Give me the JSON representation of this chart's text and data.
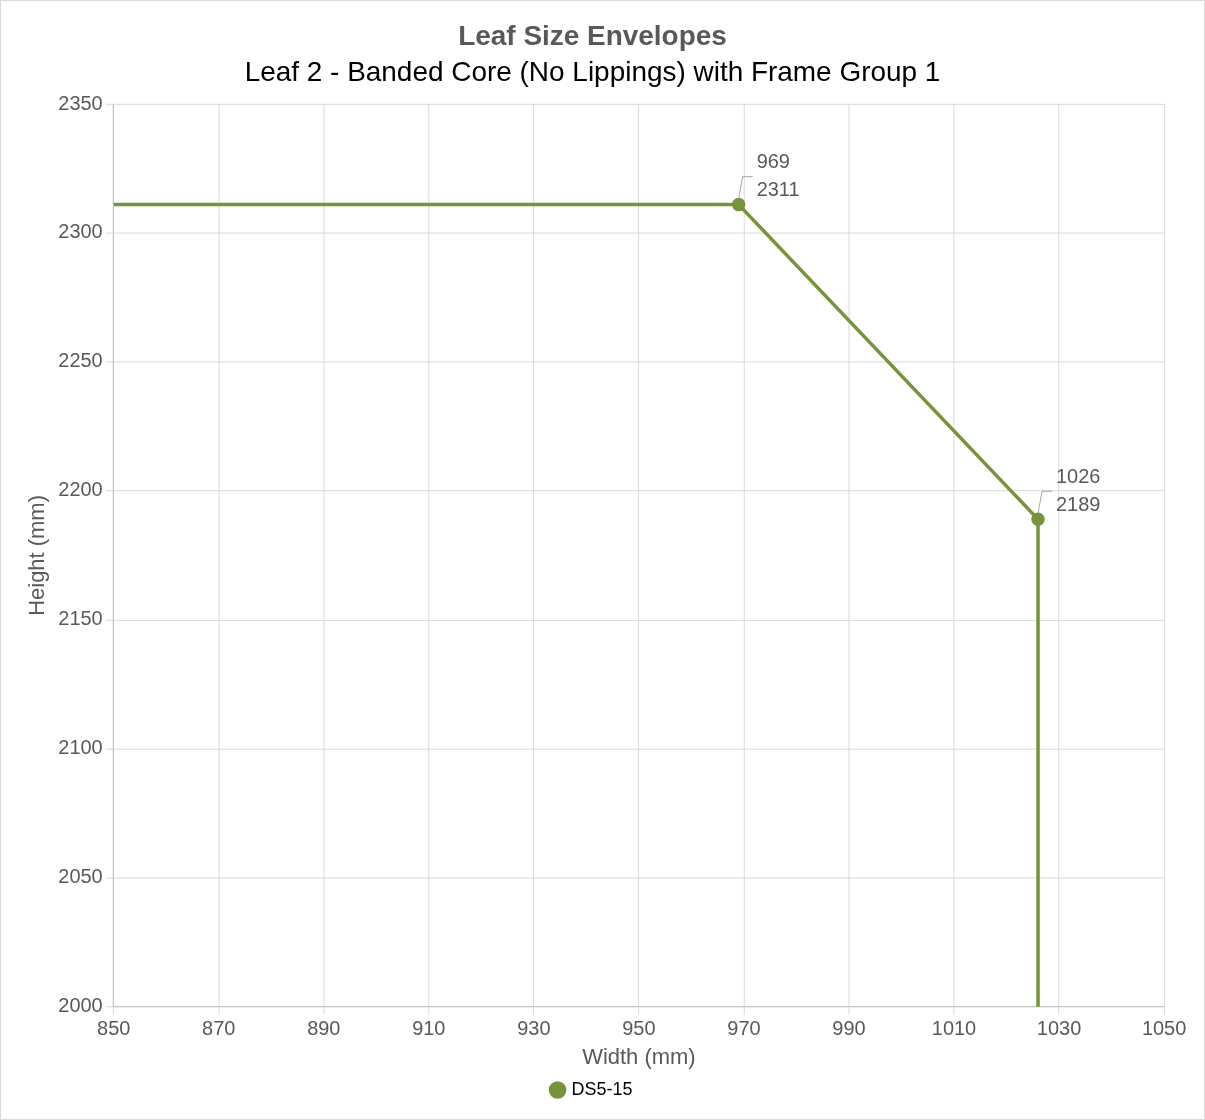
{
  "chart_data": {
    "type": "line",
    "title": "Leaf Size Envelopes",
    "subtitle": "Leaf 2 - Banded Core (No Lippings) with Frame Group 1",
    "xlabel": "Width (mm)",
    "ylabel": "Height (mm)",
    "x": [
      850,
      969,
      1026,
      1026
    ],
    "series": [
      {
        "name": "DS5-15",
        "color": "#77933c",
        "values": [
          2311,
          2311,
          2189,
          2000
        ],
        "value_labels": [
          null,
          "969\n2311",
          "1026\n2189",
          null
        ]
      }
    ],
    "xlim": [
      850,
      1050
    ],
    "xticks": [
      850,
      870,
      890,
      910,
      930,
      950,
      970,
      990,
      1010,
      1030,
      1050
    ],
    "ylim": [
      2000,
      2350
    ],
    "yticks": [
      2000,
      2050,
      2100,
      2150,
      2200,
      2250,
      2300,
      2350
    ],
    "grid": true,
    "legend": "bottom",
    "marker": "circle",
    "line_style": "solid"
  }
}
